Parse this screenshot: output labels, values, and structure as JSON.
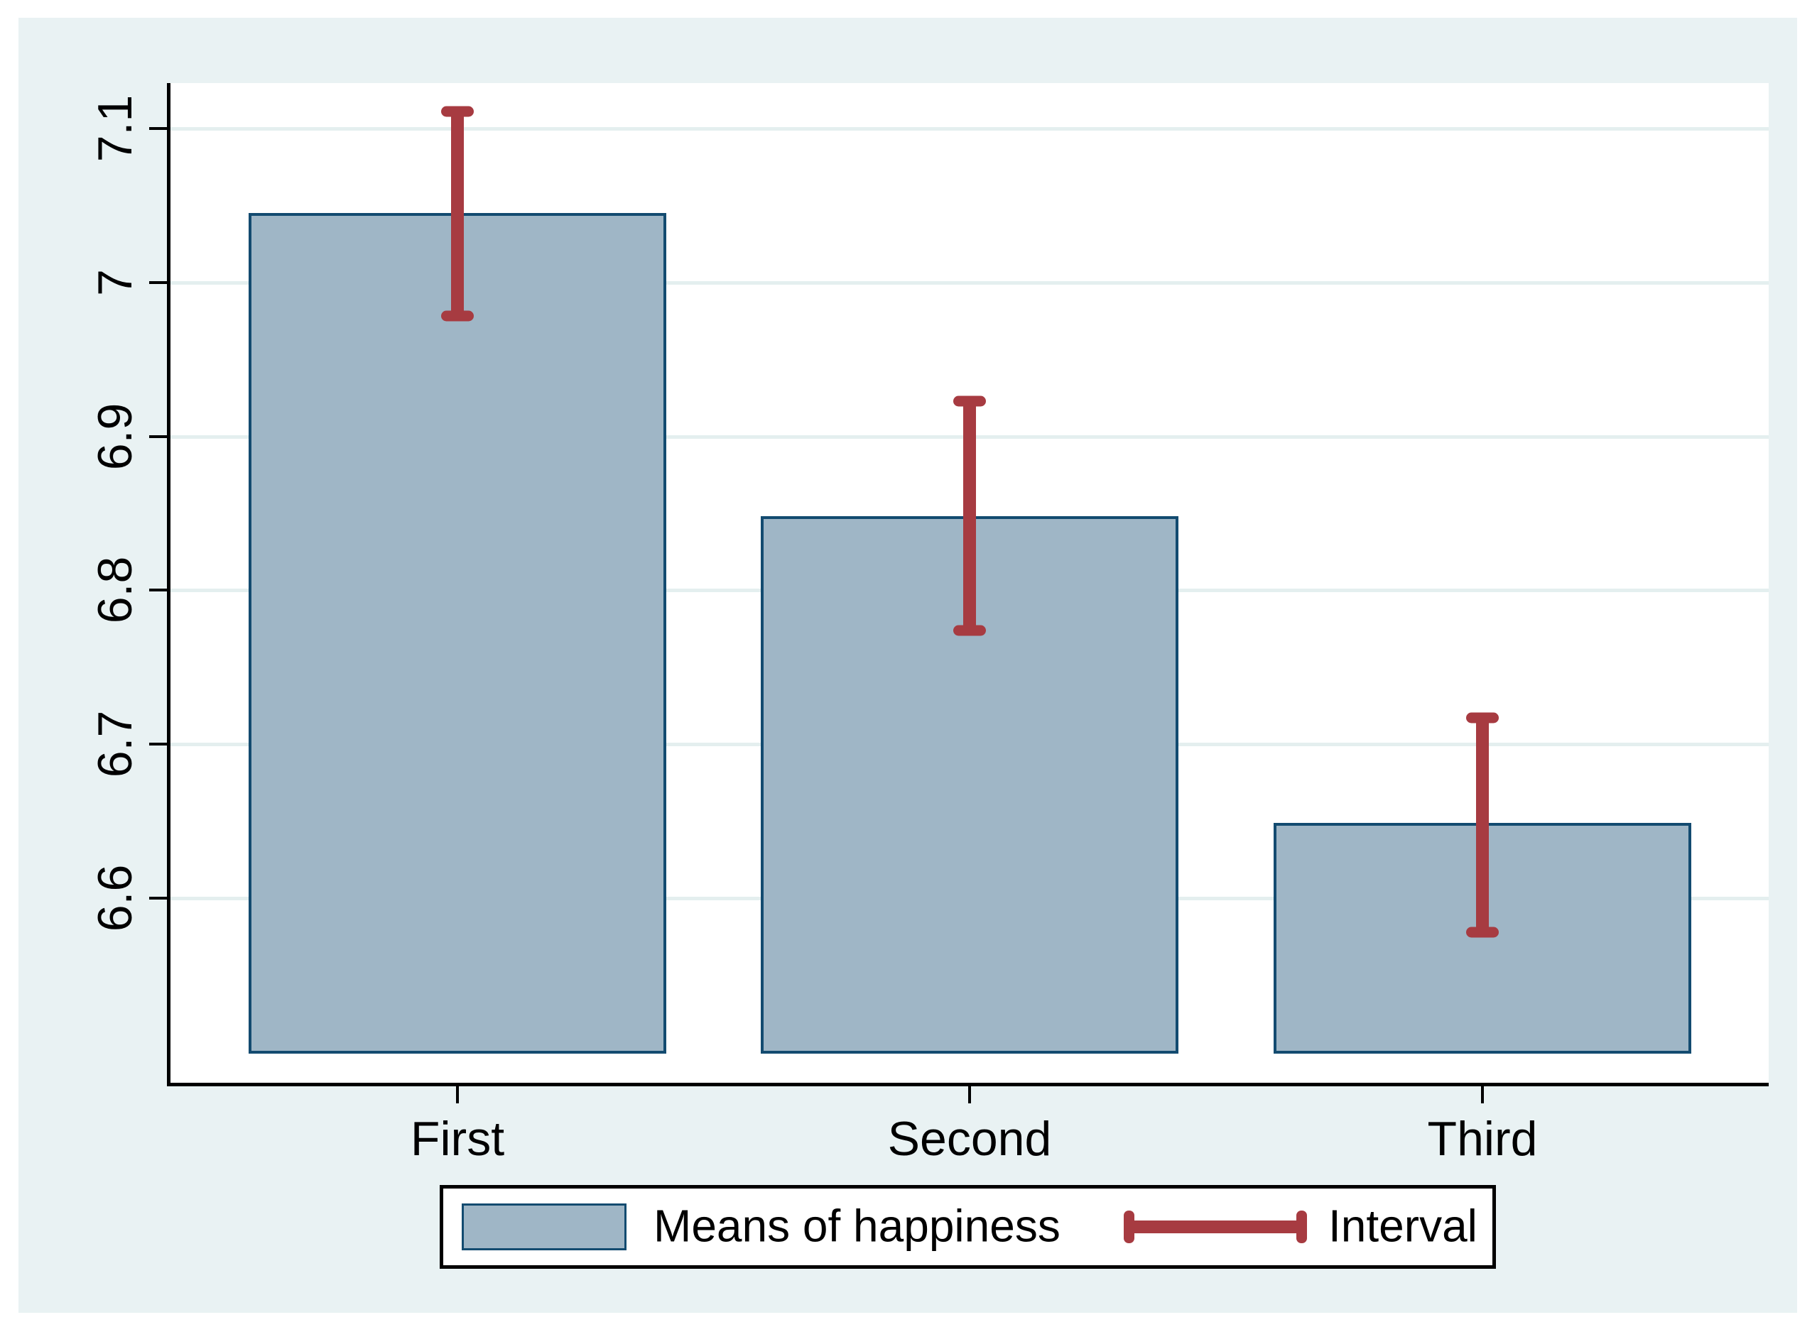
{
  "chart_data": {
    "type": "bar",
    "title": "",
    "categories": [
      "First",
      "Second",
      "Third"
    ],
    "series": [
      {
        "name": "Means of happiness",
        "type": "bar",
        "values": [
          7.045,
          6.848,
          6.649
        ]
      },
      {
        "name": "Interval",
        "type": "error-interval",
        "low": [
          6.978,
          6.774,
          6.578
        ],
        "high": [
          7.111,
          6.923,
          6.717
        ]
      }
    ],
    "xlabel": "",
    "ylabel": "",
    "y_ticks": [
      "7.1",
      "7",
      "6.9",
      "6.8",
      "6.7",
      "6.6"
    ],
    "y_tick_values": [
      7.1,
      7.0,
      6.9,
      6.8,
      6.7,
      6.6
    ],
    "ylim": [
      6.48,
      7.13
    ],
    "grid": "horizontal",
    "legend_position": "bottom-center",
    "colors": {
      "bar_fill": "#9fb6c6",
      "bar_border": "#134b70",
      "interval": "#a73b41",
      "graph_background": "#e9f2f3",
      "plot_background": "#ffffff",
      "gridline": "#e4efef",
      "axis": "#000000",
      "text": "#000000"
    }
  }
}
